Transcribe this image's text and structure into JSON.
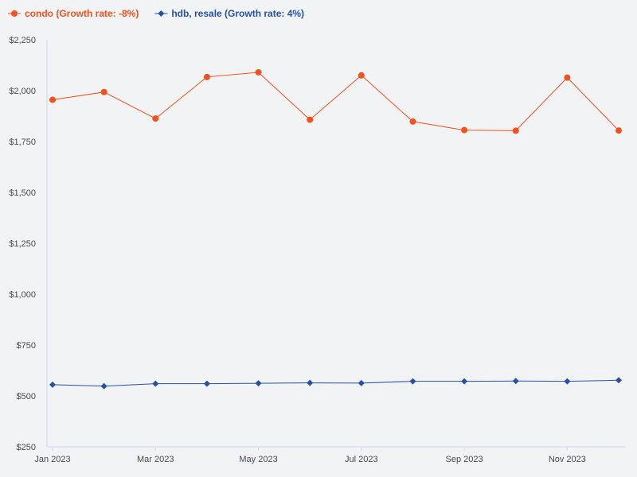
{
  "chart_data": {
    "type": "line",
    "title": "",
    "xlabel": "",
    "ylabel": "",
    "x_dates": [
      "2023-01",
      "2023-02",
      "2023-03",
      "2023-04",
      "2023-05",
      "2023-06",
      "2023-07",
      "2023-08",
      "2023-09",
      "2023-10",
      "2023-11",
      "2023-12"
    ],
    "x_tick_labels": [
      {
        "label": "Jan 2023",
        "index": 0
      },
      {
        "label": "Mar 2023",
        "index": 2
      },
      {
        "label": "May 2023",
        "index": 4
      },
      {
        "label": "Jul 2023",
        "index": 6
      },
      {
        "label": "Sep 2023",
        "index": 8
      },
      {
        "label": "Nov 2023",
        "index": 10
      }
    ],
    "ylim": [
      250,
      2250
    ],
    "y_ticks": [
      250,
      500,
      750,
      1000,
      1250,
      1500,
      1750,
      2000,
      2250
    ],
    "y_tick_labels": [
      "$250",
      "$500",
      "$750",
      "$1,000",
      "$1,250",
      "$1,500",
      "$1,750",
      "$2,000",
      "$2,250"
    ],
    "grid": false,
    "legend_position": "top-left",
    "series": [
      {
        "name": "condo (Growth rate: -8%)",
        "color": "#f4511e",
        "marker": "circle",
        "values": [
          1955,
          1993,
          1863,
          2067,
          2090,
          1857,
          2075,
          1848,
          1806,
          1803,
          2064,
          1804
        ]
      },
      {
        "name": "hdb, resale (Growth rate: 4%)",
        "color": "#2451a3",
        "marker": "diamond",
        "values": [
          555,
          548,
          560,
          560,
          562,
          564,
          563,
          572,
          572,
          573,
          572,
          577
        ]
      }
    ]
  }
}
